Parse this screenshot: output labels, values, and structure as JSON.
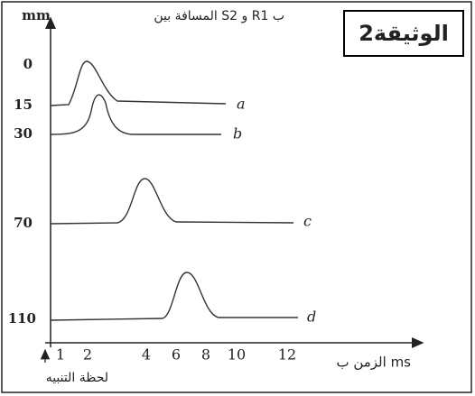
{
  "title": "الوثيقة2",
  "y_axis": {
    "unit": "mm",
    "label": "المسافة بين S2 و R1 ب",
    "ticks": [
      "0",
      "15",
      "30",
      "70",
      "110"
    ]
  },
  "x_axis": {
    "label": "الزمن ب ms",
    "ticks": [
      "1",
      "2",
      "4",
      "6",
      "8",
      "10",
      "12"
    ],
    "stimulus": "لحظة التنبيه"
  },
  "curves": [
    "a",
    "b",
    "c",
    "d"
  ]
}
